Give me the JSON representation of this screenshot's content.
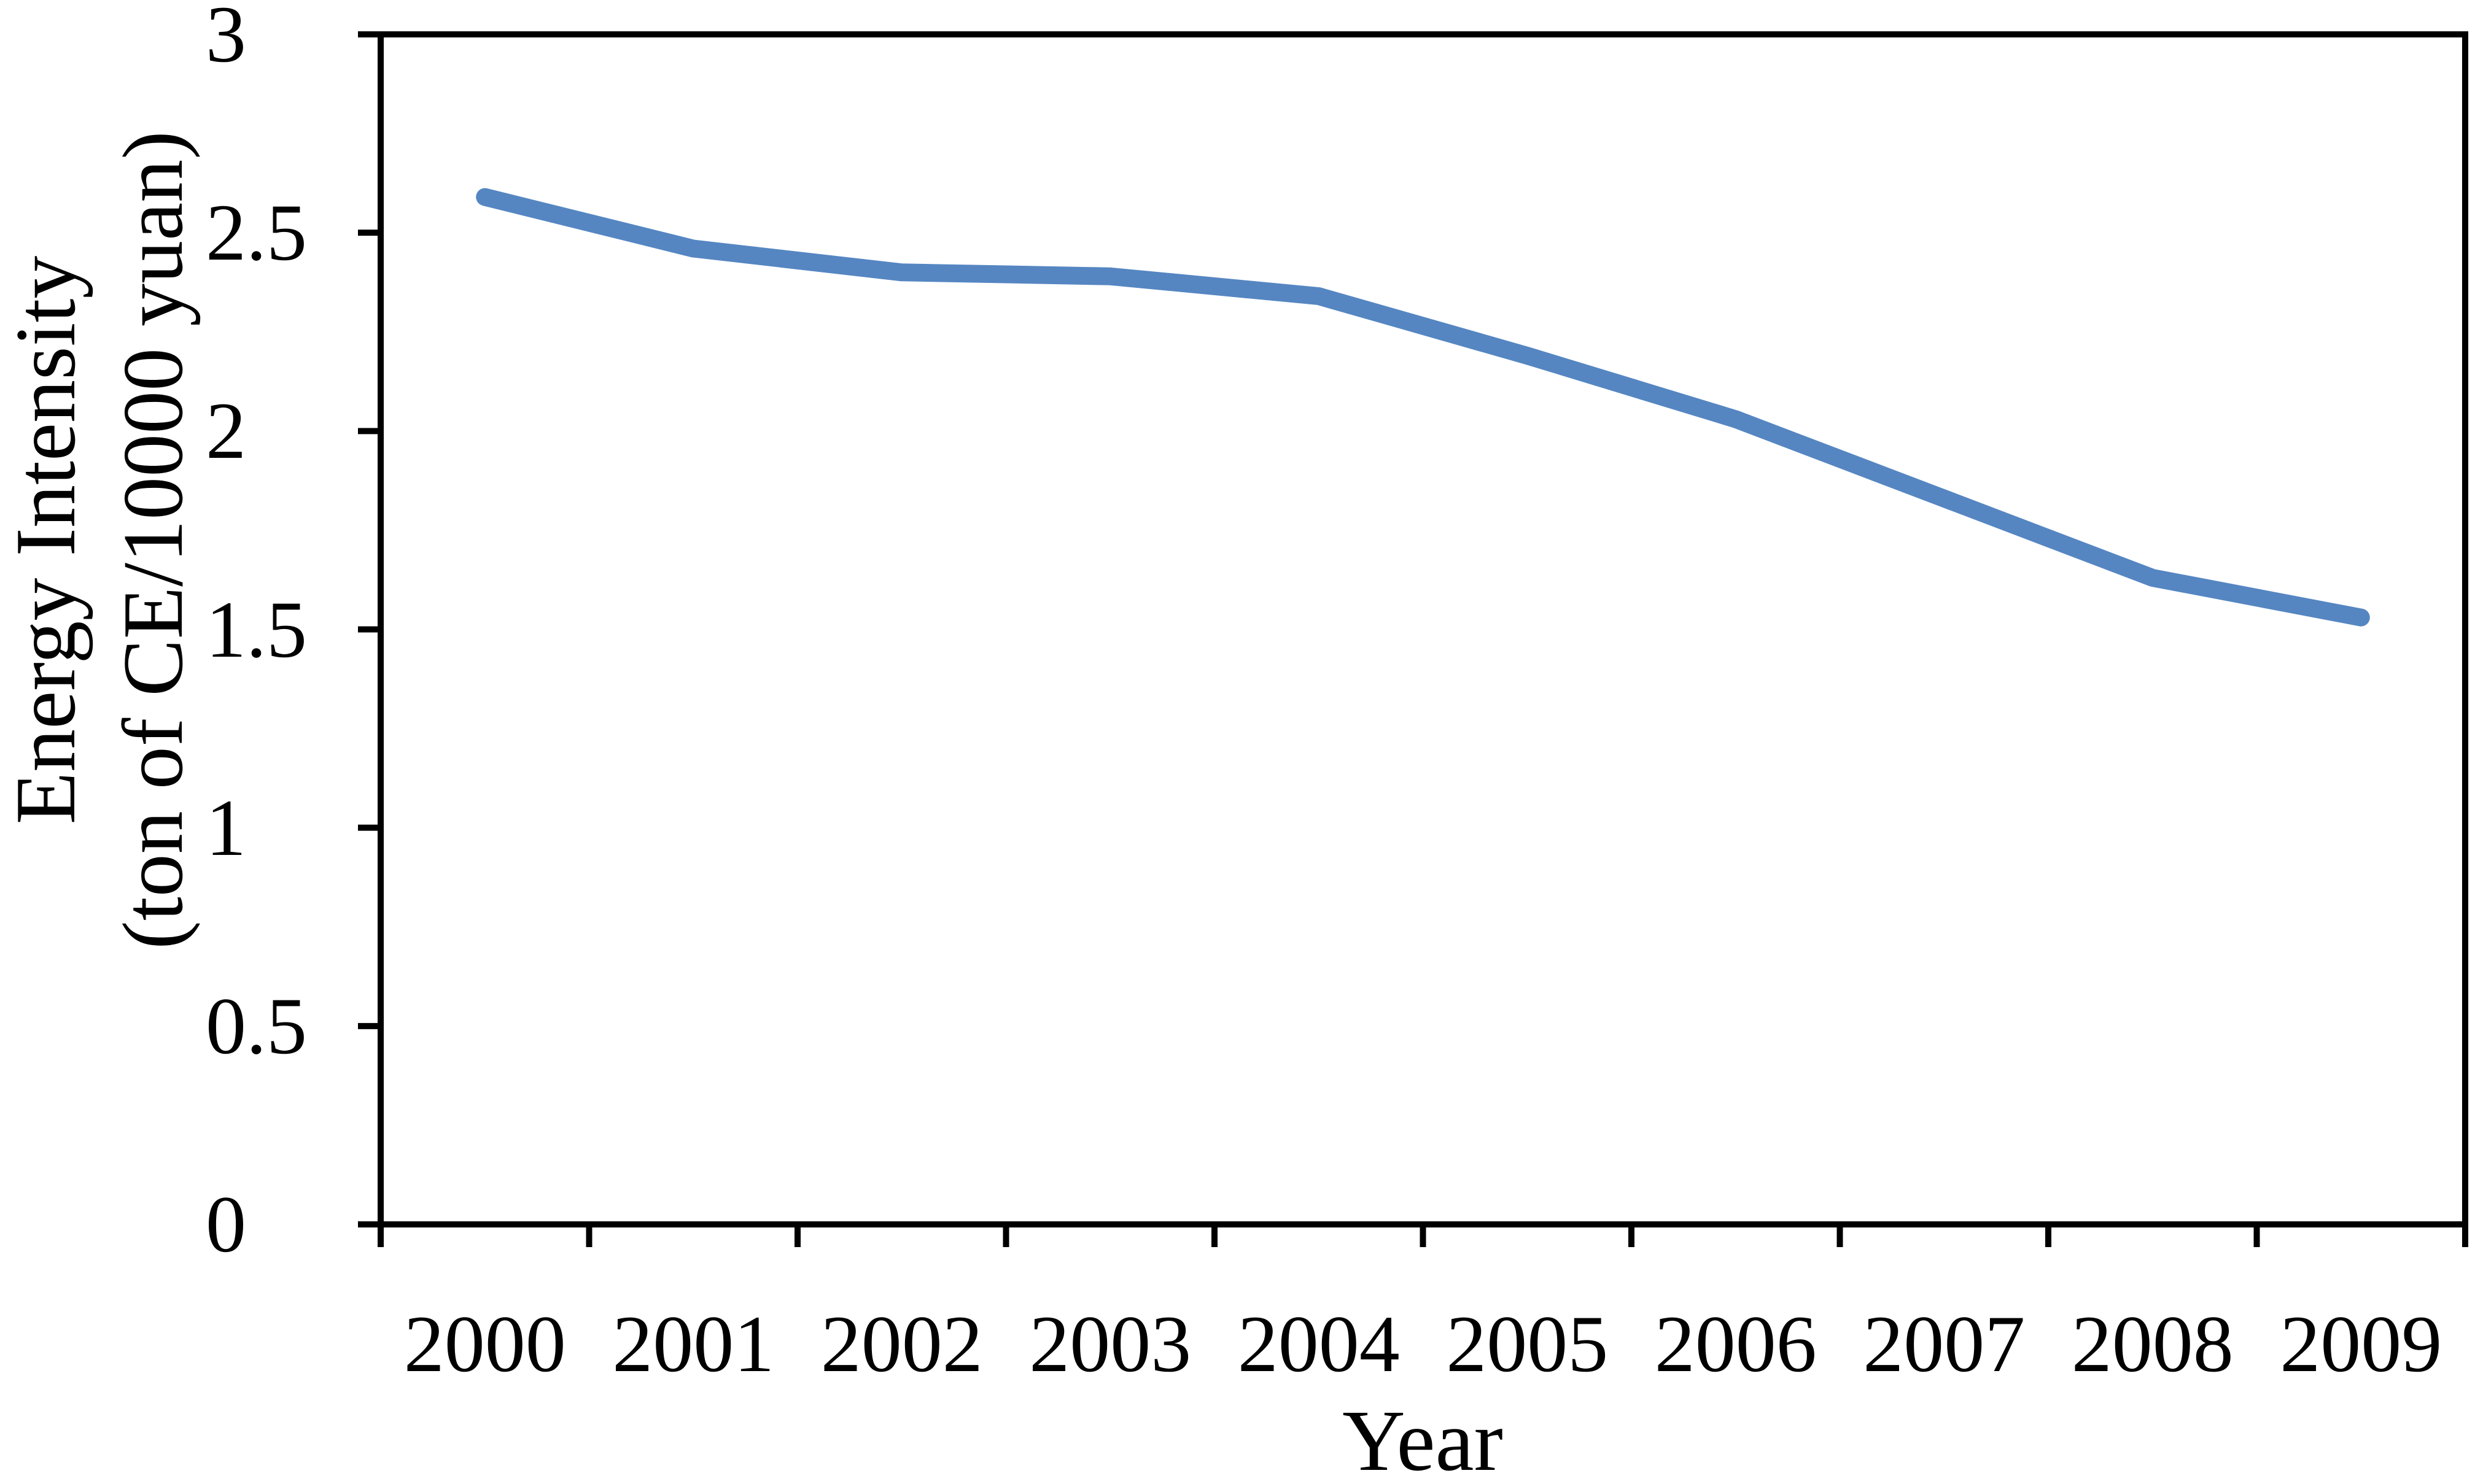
{
  "chart_data": {
    "type": "line",
    "title": "",
    "categories": [
      "2000",
      "2001",
      "2002",
      "2003",
      "2004",
      "2005",
      "2006",
      "2007",
      "2008",
      "2009"
    ],
    "values": [
      2.59,
      2.46,
      2.4,
      2.39,
      2.34,
      2.19,
      2.03,
      1.83,
      1.63,
      1.53
    ],
    "series_name": "Energy Intensity",
    "xlabel": "Year",
    "ylabel": "Energy Intensity (ton of CE/10000 yuan)",
    "ylabel_lines": [
      "Energy Intensity",
      "(ton of CE/10000 yuan)"
    ],
    "ylim": [
      0,
      3
    ],
    "yticks": [
      0,
      0.5,
      1,
      1.5,
      2,
      2.5,
      3
    ],
    "ytick_labels": [
      "0",
      "0.5",
      "1",
      "1.5",
      "2",
      "2.5",
      "3"
    ],
    "grid": false,
    "legend": false,
    "line_color": "#5586C2",
    "axis_color": "#000000",
    "background_color": "#FFFFFF"
  }
}
